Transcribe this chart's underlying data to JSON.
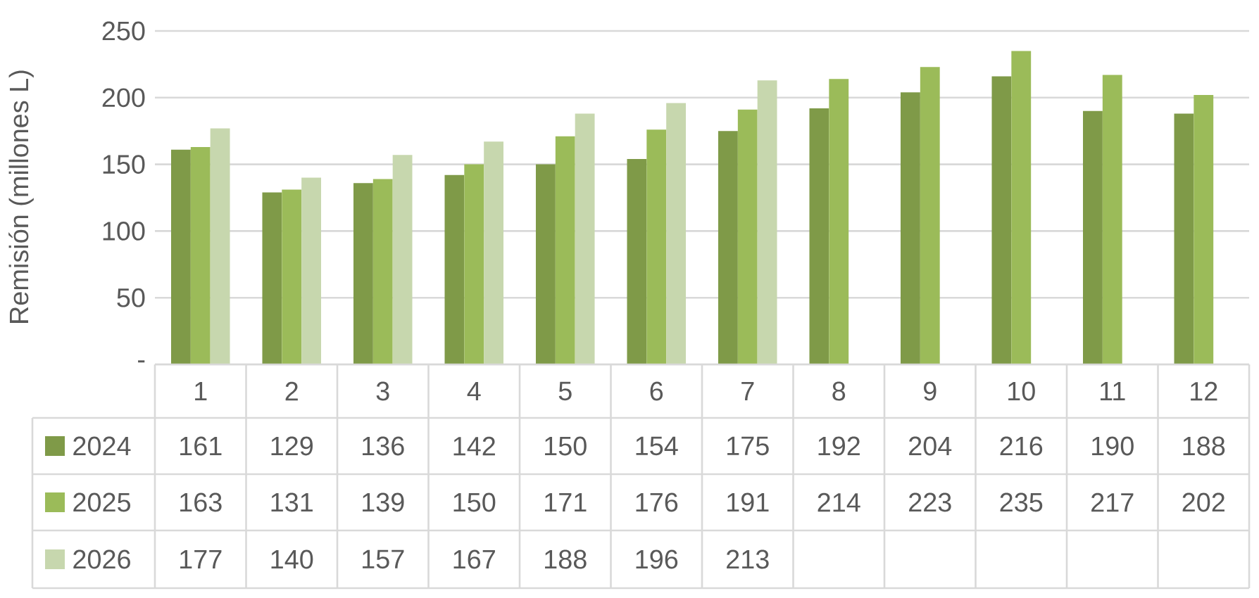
{
  "chart_data": {
    "type": "bar",
    "ylabel": "Remisión (millones L)",
    "categories": [
      "1",
      "2",
      "3",
      "4",
      "5",
      "6",
      "7",
      "8",
      "9",
      "10",
      "11",
      "12"
    ],
    "series": [
      {
        "name": "2024",
        "color": "#7f9a48",
        "values": [
          161,
          129,
          136,
          142,
          150,
          154,
          175,
          192,
          204,
          216,
          190,
          188
        ]
      },
      {
        "name": "2025",
        "color": "#9bbb59",
        "values": [
          163,
          131,
          139,
          150,
          171,
          176,
          191,
          214,
          223,
          235,
          217,
          202
        ]
      },
      {
        "name": "2026",
        "color": "#c7d7ae",
        "values": [
          177,
          140,
          157,
          167,
          188,
          196,
          213,
          null,
          null,
          null,
          null,
          null
        ]
      }
    ],
    "ylim": [
      0,
      250
    ],
    "yticks": [
      {
        "value": 0,
        "label": "-"
      },
      50,
      100,
      150,
      200,
      250
    ],
    "grid": "y",
    "legend": "bottom left",
    "data_labels": true
  }
}
